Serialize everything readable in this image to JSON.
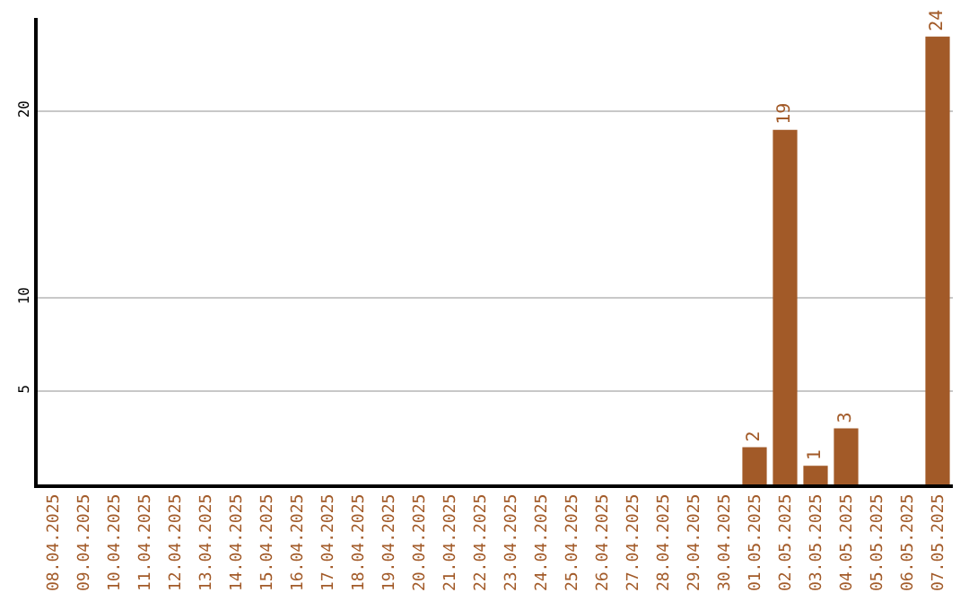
{
  "chart_data": {
    "type": "bar",
    "categories": [
      "08.04.2025",
      "09.04.2025",
      "10.04.2025",
      "11.04.2025",
      "12.04.2025",
      "13.04.2025",
      "14.04.2025",
      "15.04.2025",
      "16.04.2025",
      "17.04.2025",
      "18.04.2025",
      "19.04.2025",
      "20.04.2025",
      "21.04.2025",
      "22.04.2025",
      "23.04.2025",
      "24.04.2025",
      "25.04.2025",
      "26.04.2025",
      "27.04.2025",
      "28.04.2025",
      "29.04.2025",
      "30.04.2025",
      "01.05.2025",
      "02.05.2025",
      "03.05.2025",
      "04.05.2025",
      "05.05.2025",
      "06.05.2025",
      "07.05.2025"
    ],
    "values": [
      0,
      0,
      0,
      0,
      0,
      0,
      0,
      0,
      0,
      0,
      0,
      0,
      0,
      0,
      0,
      0,
      0,
      0,
      0,
      0,
      0,
      0,
      0,
      2,
      19,
      1,
      3,
      0,
      0,
      24
    ],
    "value_labels": [
      null,
      null,
      null,
      null,
      null,
      null,
      null,
      null,
      null,
      null,
      null,
      null,
      null,
      null,
      null,
      null,
      null,
      null,
      null,
      null,
      null,
      null,
      null,
      "2",
      "19",
      "1",
      "3",
      null,
      null,
      "24"
    ],
    "color": "#a25a28",
    "ylim": [
      0,
      25
    ],
    "yticks": [
      5,
      10,
      20
    ],
    "grid": "y"
  }
}
